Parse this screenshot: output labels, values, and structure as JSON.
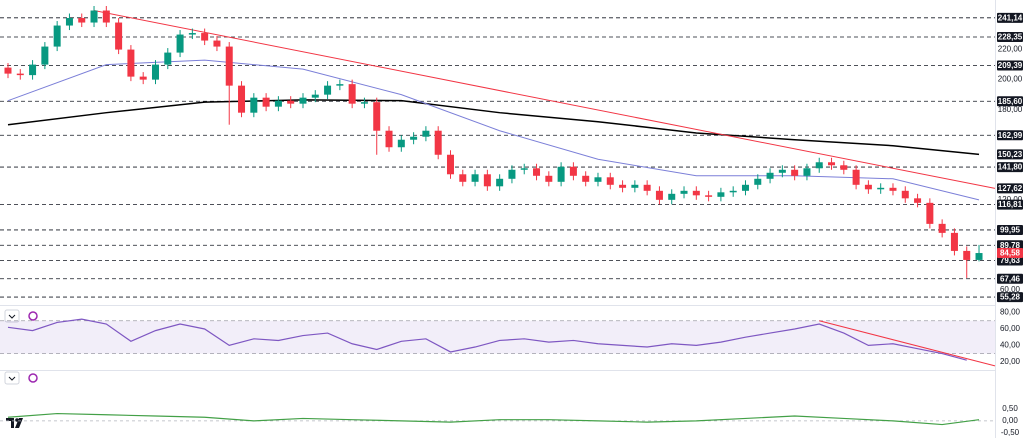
{
  "chart_data": [
    {
      "type": "candlestick",
      "up_color": "#089981",
      "down_color": "#f23645",
      "open": [
        208,
        204,
        203,
        210,
        222,
        236,
        241,
        238,
        246,
        238,
        220,
        202,
        200,
        210,
        218,
        230,
        231,
        226,
        222,
        196,
        178,
        188,
        182,
        186,
        184,
        188,
        190,
        196,
        197,
        184,
        185,
        166,
        155,
        160,
        162,
        166,
        150,
        137,
        132,
        137,
        129,
        134,
        140,
        141,
        136,
        132,
        142,
        136,
        132,
        135,
        130,
        128,
        130,
        126,
        120,
        124,
        126,
        123,
        122,
        125,
        126,
        130,
        134,
        138,
        140,
        136,
        141,
        145,
        143,
        140,
        130,
        127,
        128,
        126,
        121,
        118,
        104,
        98,
        86,
        80
      ],
      "high": [
        211,
        207,
        213,
        225,
        239,
        244,
        244,
        249,
        249,
        241,
        223,
        205,
        213,
        221,
        233,
        234,
        234,
        229,
        225,
        199,
        191,
        191,
        189,
        189,
        191,
        193,
        199,
        200,
        200,
        188,
        188,
        169,
        163,
        165,
        169,
        169,
        153,
        140,
        140,
        140,
        137,
        143,
        144,
        144,
        139,
        145,
        145,
        139,
        138,
        138,
        133,
        133,
        133,
        129,
        127,
        129,
        129,
        126,
        128,
        129,
        133,
        137,
        141,
        143,
        143,
        144,
        148,
        148,
        146,
        143,
        133,
        131,
        131,
        129,
        124,
        121,
        107,
        101,
        89,
        90
      ],
      "low": [
        201,
        200,
        200,
        207,
        219,
        233,
        235,
        235,
        235,
        217,
        199,
        197,
        197,
        207,
        215,
        227,
        223,
        219,
        170,
        175,
        175,
        179,
        179,
        181,
        181,
        185,
        187,
        193,
        181,
        181,
        150,
        152,
        152,
        157,
        159,
        147,
        134,
        129,
        129,
        126,
        126,
        131,
        137,
        133,
        129,
        129,
        133,
        129,
        129,
        127,
        125,
        125,
        123,
        117,
        117,
        121,
        120,
        119,
        119,
        122,
        123,
        127,
        131,
        135,
        133,
        133,
        138,
        140,
        137,
        127,
        124,
        124,
        123,
        118,
        115,
        101,
        95,
        83,
        68,
        79
      ],
      "close": [
        204,
        203,
        210,
        222,
        236,
        241,
        238,
        246,
        238,
        220,
        202,
        200,
        210,
        218,
        230,
        231,
        226,
        222,
        196,
        178,
        188,
        182,
        186,
        184,
        188,
        190,
        196,
        197,
        184,
        185,
        166,
        155,
        160,
        162,
        166,
        150,
        137,
        132,
        137,
        129,
        134,
        140,
        141,
        136,
        132,
        142,
        136,
        132,
        135,
        130,
        128,
        130,
        126,
        120,
        124,
        126,
        123,
        122,
        125,
        126,
        130,
        134,
        138,
        140,
        136,
        141,
        145,
        143,
        140,
        130,
        127,
        128,
        126,
        121,
        118,
        104,
        98,
        86,
        80,
        84.58
      ],
      "xlim": [
        -0.65,
        80.3
      ],
      "ylim": [
        50,
        253
      ],
      "yticks": [
        {
          "value": 60,
          "label": "60,00"
        },
        {
          "value": 120,
          "label": "120,00"
        },
        {
          "value": 180,
          "label": "180,00"
        },
        {
          "value": 200,
          "label": "200,00"
        },
        {
          "value": 220,
          "label": "220,00"
        }
      ],
      "lines": [
        {
          "color": "#000000",
          "width": 1.5,
          "x": [
            0,
            8,
            16,
            24,
            32,
            40,
            48,
            56,
            64,
            72,
            79
          ],
          "values": [
            170,
            178,
            185,
            186.5,
            186,
            178,
            172,
            164.5,
            160,
            156,
            150.23
          ]
        },
        {
          "color": "#7b7fd8",
          "width": 1,
          "x": [
            0,
            8,
            16,
            24,
            32,
            40,
            48,
            56,
            64,
            72,
            79
          ],
          "values": [
            186,
            210,
            213,
            207,
            190,
            166,
            147,
            136,
            136,
            134,
            120
          ]
        },
        {
          "color": "#f23645",
          "width": 1,
          "x": [
            7,
            80.3
          ],
          "values": [
            246,
            127.62
          ]
        }
      ],
      "levels": [
        {
          "value": 241.14,
          "label": "241,14"
        },
        {
          "value": 228.35,
          "label": "228,35"
        },
        {
          "value": 209.39,
          "label": "209,39"
        },
        {
          "value": 185.6,
          "label": "185,60"
        },
        {
          "value": 162.99,
          "label": "162,99"
        },
        {
          "value": 141.8,
          "label": "141,80"
        },
        {
          "value": 116.81,
          "label": "116,81"
        },
        {
          "value": 99.95,
          "label": "99,95"
        },
        {
          "value": 89.78,
          "label": "89,78"
        },
        {
          "value": 79.63,
          "label": "79,63"
        },
        {
          "value": 67.46,
          "label": "67,46"
        },
        {
          "value": 55.28,
          "label": "55,28"
        }
      ],
      "markers": [
        {
          "value": 150.23,
          "label": "150,23",
          "color": "#131722"
        },
        {
          "value": 127.62,
          "label": "127,62",
          "color": "#131722"
        },
        {
          "value": 84.58,
          "label": "84,58",
          "color": "#f23645"
        }
      ]
    },
    {
      "type": "line",
      "x": [
        0,
        2,
        4,
        6,
        8,
        10,
        12,
        14,
        16,
        18,
        20,
        22,
        24,
        26,
        28,
        30,
        32,
        34,
        36,
        38,
        40,
        42,
        44,
        46,
        48,
        50,
        52,
        54,
        56,
        58,
        60,
        62,
        64,
        66,
        68,
        70,
        72,
        74,
        76,
        78
      ],
      "xlim": [
        -0.65,
        80.3
      ],
      "ylim": [
        10,
        88
      ],
      "yticks": [
        {
          "value": 20,
          "label": "20,00"
        },
        {
          "value": 40,
          "label": "40,00"
        },
        {
          "value": 60,
          "label": "60,00"
        },
        {
          "value": 80,
          "label": "80,00"
        }
      ],
      "band": [
        30,
        70
      ],
      "series": [
        {
          "color": "#7e57c2",
          "values": [
            62,
            58,
            68,
            72,
            66,
            45,
            58,
            66,
            60,
            40,
            48,
            46,
            52,
            55,
            42,
            35,
            45,
            48,
            32,
            38,
            46,
            48,
            44,
            46,
            42,
            40,
            38,
            42,
            40,
            44,
            50,
            55,
            60,
            66,
            55,
            40,
            42,
            36,
            30,
            22
          ]
        }
      ],
      "trendline": {
        "color": "#f23645",
        "x": [
          66,
          80.3
        ],
        "values": [
          70,
          15
        ]
      }
    },
    {
      "type": "line",
      "x": [
        0,
        4,
        8,
        12,
        16,
        20,
        24,
        28,
        32,
        36,
        40,
        44,
        48,
        52,
        56,
        60,
        64,
        68,
        72,
        76,
        79
      ],
      "xlim": [
        -0.65,
        80.3
      ],
      "ylim": [
        -0.7,
        2.0
      ],
      "yticks": [
        {
          "value": -0.5,
          "label": "-0,50"
        },
        {
          "value": 0,
          "label": "0,00"
        },
        {
          "value": 0.5,
          "label": "0,50"
        }
      ],
      "series": [
        {
          "color": "#43a047",
          "values": [
            0.15,
            0.3,
            0.25,
            0.2,
            0.15,
            0.0,
            0.1,
            0.05,
            0.0,
            -0.05,
            0.05,
            0.05,
            0.0,
            -0.05,
            0.0,
            0.1,
            0.2,
            0.1,
            0.0,
            -0.15,
            0.05
          ]
        }
      ]
    }
  ]
}
